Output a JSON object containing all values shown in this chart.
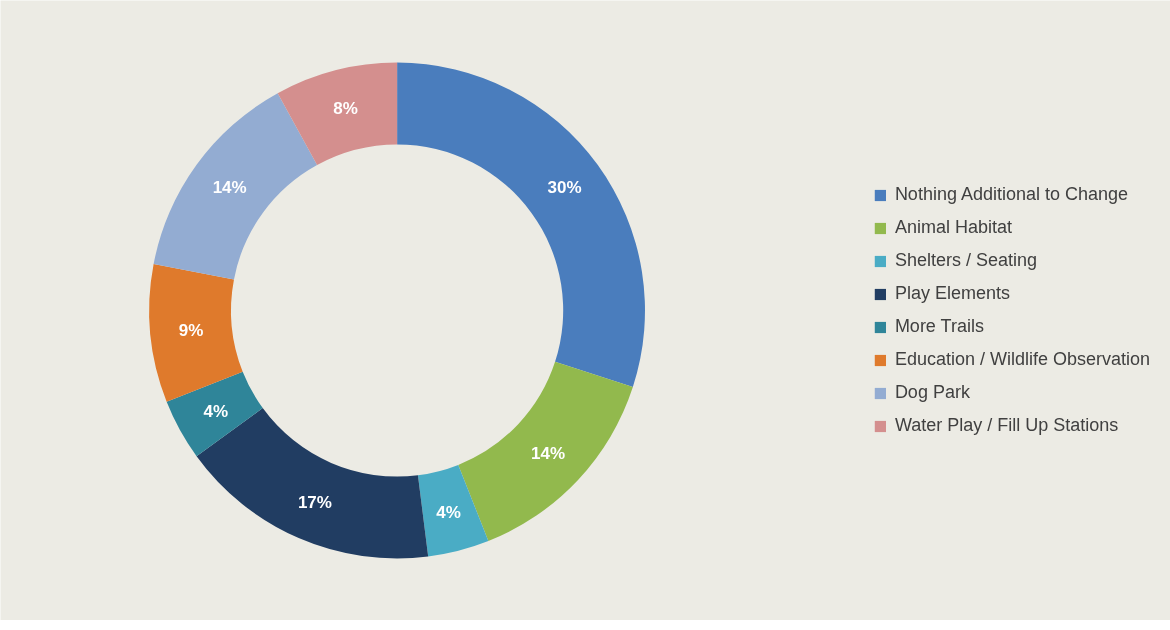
{
  "chart_data": {
    "type": "donut",
    "categories": [
      "Nothing Additional to Change",
      "Animal Habitat",
      "Shelters / Seating",
      "Play Elements",
      "More Trails",
      "Education / Wildlife Observation",
      "Dog Park",
      "Water Play / Fill Up Stations"
    ],
    "values": [
      30,
      14,
      4,
      17,
      4,
      9,
      14,
      8
    ],
    "colors": [
      "#4a7dbd",
      "#92b94d",
      "#4aacc5",
      "#213d62",
      "#2f8599",
      "#df7a2c",
      "#93acd2",
      "#d48f8e"
    ],
    "value_labels": [
      "30%",
      "14%",
      "4%",
      "17%",
      "4%",
      "9%",
      "14%",
      "8%"
    ],
    "legend": "right"
  }
}
